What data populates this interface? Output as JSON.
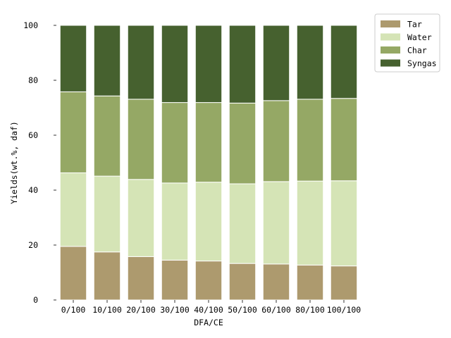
{
  "chart_data": {
    "type": "bar",
    "stacked": true,
    "title": "",
    "xlabel": "DFA/CE",
    "ylabel": "Yields(wt.%, daf)",
    "categories": [
      "0/100",
      "10/100",
      "20/100",
      "30/100",
      "40/100",
      "50/100",
      "60/100",
      "80/100",
      "100/100"
    ],
    "ylim": [
      0,
      100
    ],
    "yticks": [
      0,
      20,
      40,
      60,
      80,
      100
    ],
    "grid": false,
    "legend_position": "outside-top-right",
    "series": [
      {
        "name": "Tar",
        "color": "#ad9a6e",
        "values": [
          19.5,
          17.5,
          15.8,
          14.5,
          14.2,
          13.3,
          13.1,
          12.7,
          12.4
        ]
      },
      {
        "name": "Water",
        "color": "#d5e4b6",
        "values": [
          26.8,
          27.6,
          28.1,
          28.1,
          28.7,
          29.0,
          30.0,
          30.6,
          31.0
        ]
      },
      {
        "name": "Char",
        "color": "#95a865",
        "values": [
          29.5,
          29.2,
          29.2,
          29.3,
          29.0,
          29.4,
          29.5,
          29.8,
          30.0
        ]
      },
      {
        "name": "Syngas",
        "color": "#46612f",
        "values": [
          24.2,
          25.7,
          26.9,
          28.1,
          28.1,
          28.3,
          27.4,
          26.9,
          26.6
        ]
      }
    ]
  }
}
